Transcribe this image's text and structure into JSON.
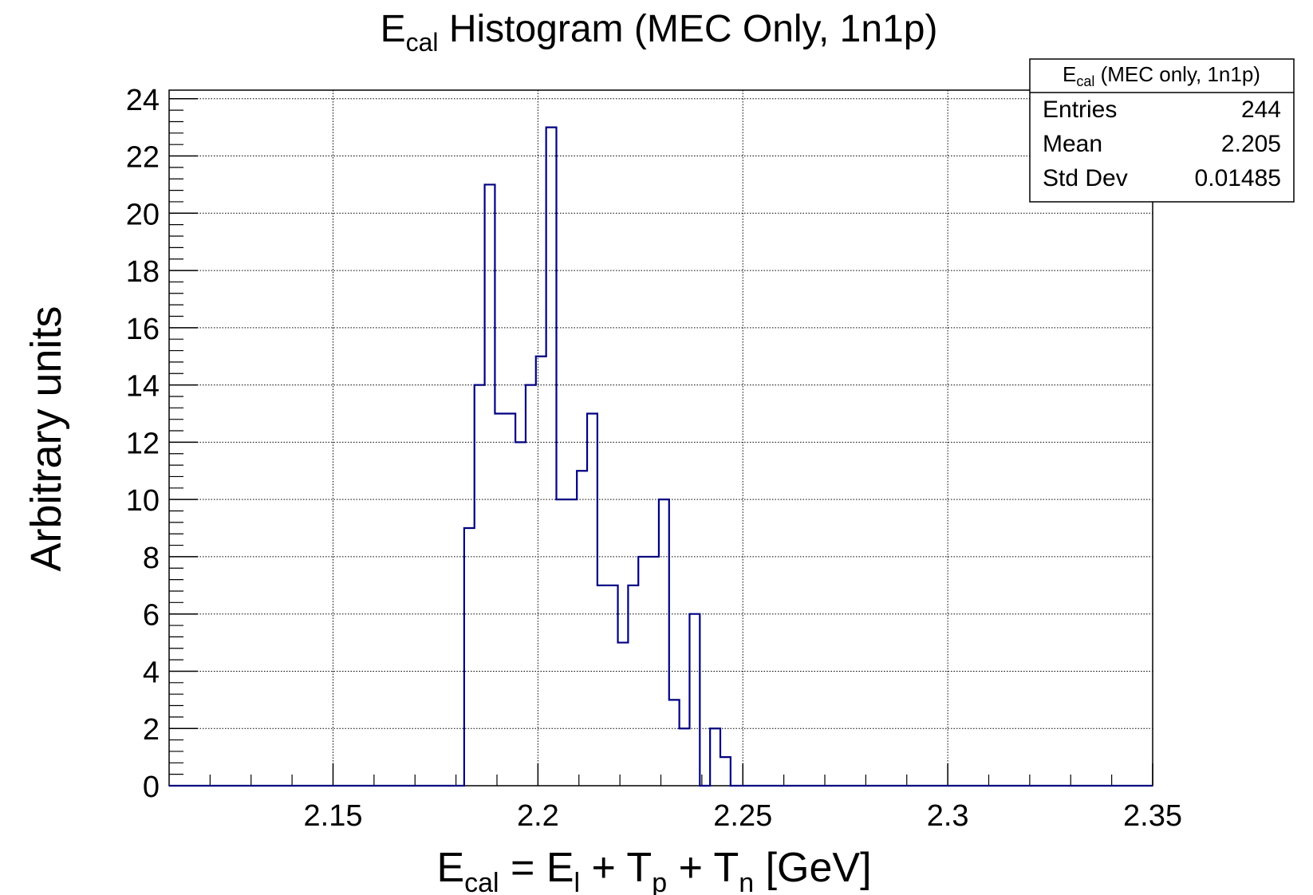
{
  "chart_data": {
    "type": "histogram",
    "title": {
      "main": "E",
      "sub": "cal",
      "rest": " Histogram (MEC Only, 1n1p)"
    },
    "xlabel": {
      "parts": [
        {
          "t": "E",
          "sub": "cal"
        },
        {
          "t": " = E",
          "sub": "l"
        },
        {
          "t": " + T",
          "sub": "p"
        },
        {
          "t": " + T",
          "sub": "n"
        },
        {
          "t": " [GeV]"
        }
      ]
    },
    "ylabel": "Arbitrary units",
    "xlim": [
      2.11,
      2.35
    ],
    "ylim": [
      0,
      24.3
    ],
    "x_ticks": [
      {
        "v": 2.15,
        "label": "2.15"
      },
      {
        "v": 2.2,
        "label": "2.2"
      },
      {
        "v": 2.25,
        "label": "2.25"
      },
      {
        "v": 2.3,
        "label": "2.3"
      },
      {
        "v": 2.35,
        "label": "2.35"
      }
    ],
    "y_ticks": [
      {
        "v": 0,
        "label": "0"
      },
      {
        "v": 2,
        "label": "2"
      },
      {
        "v": 4,
        "label": "4"
      },
      {
        "v": 6,
        "label": "6"
      },
      {
        "v": 8,
        "label": "8"
      },
      {
        "v": 10,
        "label": "10"
      },
      {
        "v": 12,
        "label": "12"
      },
      {
        "v": 14,
        "label": "14"
      },
      {
        "v": 16,
        "label": "16"
      },
      {
        "v": 18,
        "label": "18"
      },
      {
        "v": 20,
        "label": "20"
      },
      {
        "v": 22,
        "label": "22"
      },
      {
        "v": 24,
        "label": "24"
      }
    ],
    "grid": true,
    "line_color": "#000080",
    "bins": [
      {
        "x0": 2.182,
        "x1": 2.1845,
        "y": 9
      },
      {
        "x0": 2.1845,
        "x1": 2.187,
        "y": 14
      },
      {
        "x0": 2.187,
        "x1": 2.1895,
        "y": 21
      },
      {
        "x0": 2.1895,
        "x1": 2.1945,
        "y": 13
      },
      {
        "x0": 2.1945,
        "x1": 2.197,
        "y": 12
      },
      {
        "x0": 2.197,
        "x1": 2.1995,
        "y": 14
      },
      {
        "x0": 2.1995,
        "x1": 2.202,
        "y": 15
      },
      {
        "x0": 2.202,
        "x1": 2.2045,
        "y": 23
      },
      {
        "x0": 2.2045,
        "x1": 2.2095,
        "y": 10
      },
      {
        "x0": 2.2095,
        "x1": 2.212,
        "y": 11
      },
      {
        "x0": 2.212,
        "x1": 2.2145,
        "y": 13
      },
      {
        "x0": 2.2145,
        "x1": 2.2195,
        "y": 7
      },
      {
        "x0": 2.2195,
        "x1": 2.222,
        "y": 5
      },
      {
        "x0": 2.222,
        "x1": 2.2245,
        "y": 7
      },
      {
        "x0": 2.2245,
        "x1": 2.2295,
        "y": 8
      },
      {
        "x0": 2.2295,
        "x1": 2.232,
        "y": 10
      },
      {
        "x0": 2.232,
        "x1": 2.2345,
        "y": 3
      },
      {
        "x0": 2.2345,
        "x1": 2.237,
        "y": 2
      },
      {
        "x0": 2.237,
        "x1": 2.2395,
        "y": 6
      },
      {
        "x0": 2.2395,
        "x1": 2.242,
        "y": 0
      },
      {
        "x0": 2.242,
        "x1": 2.2445,
        "y": 2
      },
      {
        "x0": 2.2445,
        "x1": 2.247,
        "y": 1
      }
    ],
    "stats_box": {
      "title": {
        "main": "E",
        "sub": "cal",
        "rest": " (MEC only, 1n1p)"
      },
      "rows": [
        {
          "label": "Entries",
          "value": "244"
        },
        {
          "label": "Mean",
          "value": "2.205"
        },
        {
          "label": "Std Dev",
          "value": "0.01485"
        }
      ],
      "placement": "top-right"
    }
  }
}
